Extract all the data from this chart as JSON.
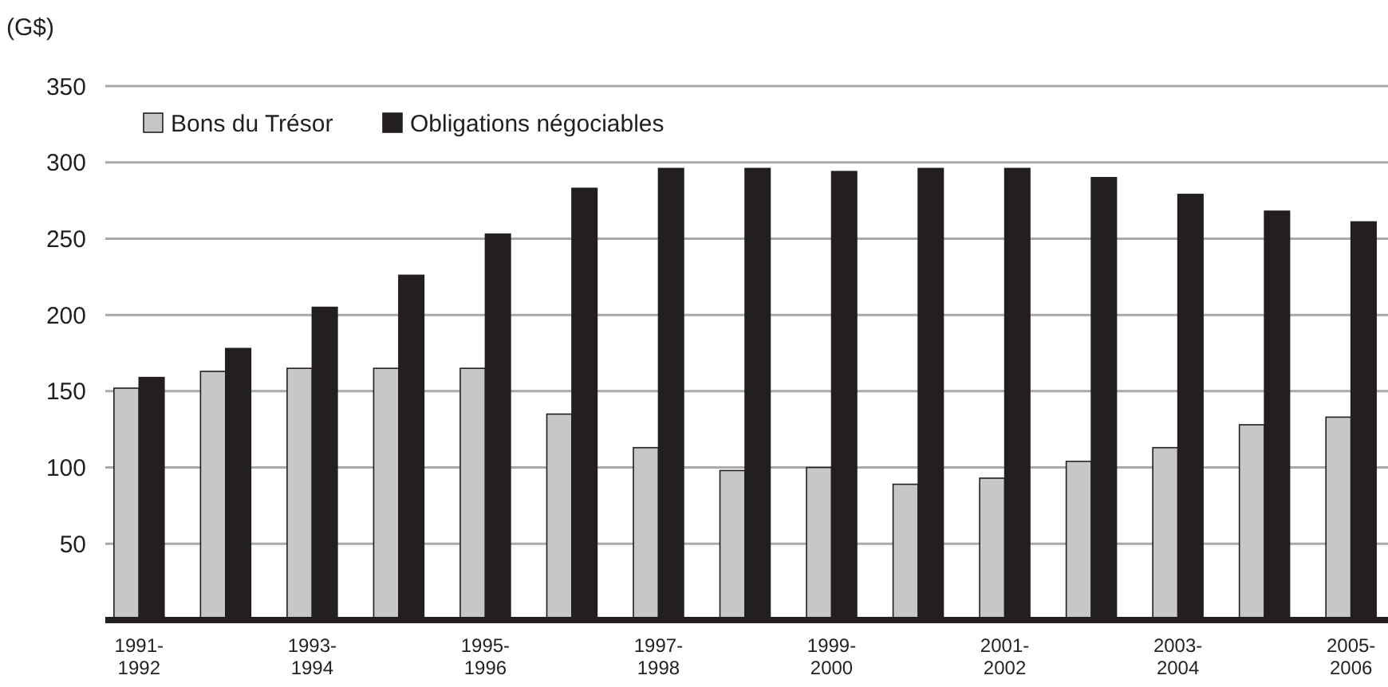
{
  "chart_data": {
    "type": "bar",
    "ylabel": "(G$)",
    "categories": [
      "1991-1992",
      null,
      "1993-1994",
      null,
      "1995-1996",
      null,
      "1997-1998",
      null,
      "1999-2000",
      null,
      "2001-2002",
      null,
      "2003-2004",
      null,
      "2005-2006"
    ],
    "series": [
      {
        "name": "Bons du Trésor",
        "color": "#c6c7c9",
        "values": [
          152,
          163,
          165,
          165,
          165,
          135,
          113,
          98,
          100,
          89,
          93,
          104,
          113,
          128,
          133
        ]
      },
      {
        "name": "Obligations négociables",
        "color": "#231f20",
        "values": [
          159,
          178,
          205,
          226,
          253,
          283,
          296,
          296,
          294,
          296,
          296,
          290,
          279,
          268,
          261
        ]
      }
    ],
    "ylim": [
      0,
      350
    ],
    "yticks": [
      50,
      100,
      150,
      200,
      250,
      300,
      350
    ],
    "grid": "y",
    "legend": "top left"
  }
}
